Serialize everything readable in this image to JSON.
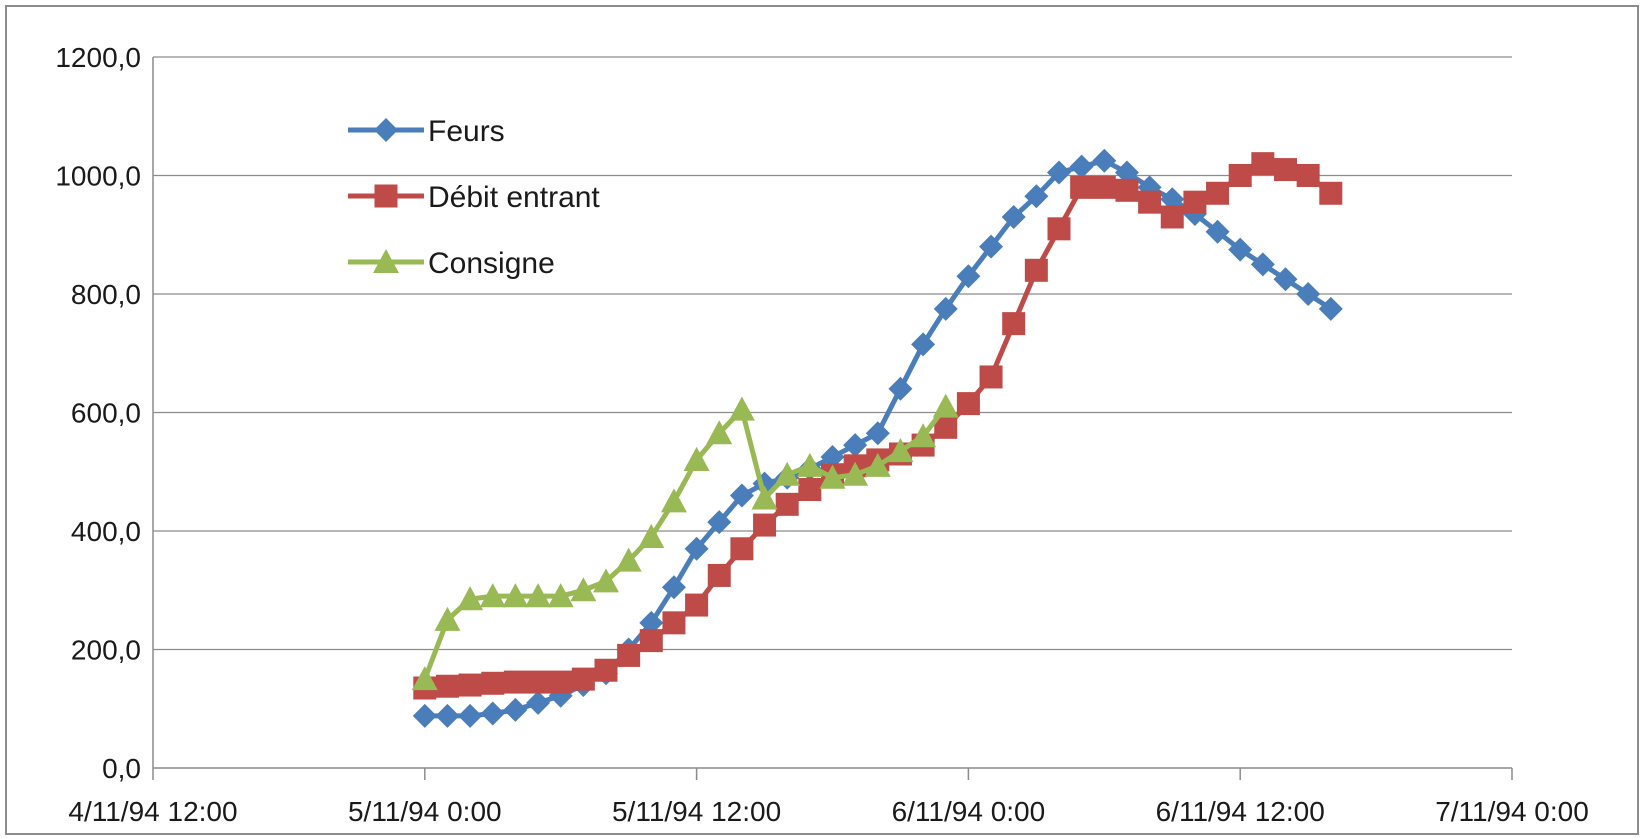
{
  "chart_data": {
    "type": "line",
    "title": "",
    "xlabel": "",
    "ylabel": "",
    "x_axis": {
      "type": "datetime",
      "range": [
        "1994-11-04T12:00",
        "1994-11-07T00:00"
      ],
      "ticks": [
        "1994-11-04T12:00",
        "1994-11-05T00:00",
        "1994-11-05T12:00",
        "1994-11-06T00:00",
        "1994-11-06T12:00",
        "1994-11-07T00:00"
      ],
      "tick_labels": [
        "4/11/94 12:00",
        "5/11/94 0:00",
        "5/11/94 12:00",
        "6/11/94 0:00",
        "6/11/94 12:00",
        "7/11/94 0:00"
      ]
    },
    "y_axis": {
      "range": [
        0,
        1200
      ],
      "ticks": [
        0,
        200,
        400,
        600,
        800,
        1000,
        1200
      ],
      "tick_labels": [
        "0,0",
        "200,0",
        "400,0",
        "600,0",
        "800,0",
        "1000,0",
        "1200,0"
      ]
    },
    "grid": "horizontal",
    "legend_position": "top-left",
    "series": [
      {
        "name": "Feurs",
        "color": "#4a7ebb",
        "marker": "diamond",
        "x": [
          "1994-11-05T00:00",
          "1994-11-05T01:00",
          "1994-11-05T02:00",
          "1994-11-05T03:00",
          "1994-11-05T04:00",
          "1994-11-05T05:00",
          "1994-11-05T06:00",
          "1994-11-05T07:00",
          "1994-11-05T08:00",
          "1994-11-05T09:00",
          "1994-11-05T10:00",
          "1994-11-05T11:00",
          "1994-11-05T12:00",
          "1994-11-05T13:00",
          "1994-11-05T14:00",
          "1994-11-05T15:00",
          "1994-11-05T16:00",
          "1994-11-05T17:00",
          "1994-11-05T18:00",
          "1994-11-05T19:00",
          "1994-11-05T20:00",
          "1994-11-05T21:00",
          "1994-11-05T22:00",
          "1994-11-05T23:00",
          "1994-11-06T00:00",
          "1994-11-06T01:00",
          "1994-11-06T02:00",
          "1994-11-06T03:00",
          "1994-11-06T04:00",
          "1994-11-06T05:00",
          "1994-11-06T06:00",
          "1994-11-06T07:00",
          "1994-11-06T08:00",
          "1994-11-06T09:00",
          "1994-11-06T10:00",
          "1994-11-06T11:00",
          "1994-11-06T12:00",
          "1994-11-06T13:00",
          "1994-11-06T14:00",
          "1994-11-06T15:00",
          "1994-11-06T16:00"
        ],
        "values": [
          88,
          88,
          88,
          92,
          98,
          110,
          122,
          140,
          160,
          200,
          245,
          305,
          370,
          415,
          460,
          480,
          490,
          505,
          525,
          545,
          565,
          640,
          715,
          775,
          830,
          880,
          930,
          965,
          1005,
          1015,
          1025,
          1005,
          980,
          960,
          935,
          905,
          875,
          850,
          825,
          800,
          775
        ]
      },
      {
        "name": "Débit entrant",
        "color": "#be4b48",
        "marker": "square",
        "x": [
          "1994-11-05T00:00",
          "1994-11-05T01:00",
          "1994-11-05T02:00",
          "1994-11-05T03:00",
          "1994-11-05T04:00",
          "1994-11-05T05:00",
          "1994-11-05T06:00",
          "1994-11-05T07:00",
          "1994-11-05T08:00",
          "1994-11-05T09:00",
          "1994-11-05T10:00",
          "1994-11-05T11:00",
          "1994-11-05T12:00",
          "1994-11-05T13:00",
          "1994-11-05T14:00",
          "1994-11-05T15:00",
          "1994-11-05T16:00",
          "1994-11-05T17:00",
          "1994-11-05T18:00",
          "1994-11-05T19:00",
          "1994-11-05T20:00",
          "1994-11-05T21:00",
          "1994-11-05T22:00",
          "1994-11-05T23:00",
          "1994-11-06T00:00",
          "1994-11-06T01:00",
          "1994-11-06T02:00",
          "1994-11-06T03:00",
          "1994-11-06T04:00",
          "1994-11-06T05:00",
          "1994-11-06T06:00",
          "1994-11-06T07:00",
          "1994-11-06T08:00",
          "1994-11-06T09:00",
          "1994-11-06T10:00",
          "1994-11-06T11:00",
          "1994-11-06T12:00",
          "1994-11-06T13:00",
          "1994-11-06T14:00",
          "1994-11-06T15:00",
          "1994-11-06T16:00"
        ],
        "values": [
          135,
          138,
          140,
          143,
          145,
          145,
          145,
          150,
          165,
          190,
          215,
          245,
          275,
          325,
          370,
          410,
          445,
          470,
          495,
          510,
          520,
          530,
          545,
          575,
          615,
          660,
          750,
          840,
          910,
          980,
          980,
          975,
          955,
          930,
          955,
          970,
          1000,
          1020,
          1010,
          1000,
          970
        ]
      },
      {
        "name": "Consigne",
        "color": "#98b954",
        "marker": "triangle",
        "x": [
          "1994-11-05T00:00",
          "1994-11-05T01:00",
          "1994-11-05T02:00",
          "1994-11-05T03:00",
          "1994-11-05T04:00",
          "1994-11-05T05:00",
          "1994-11-05T06:00",
          "1994-11-05T07:00",
          "1994-11-05T08:00",
          "1994-11-05T09:00",
          "1994-11-05T10:00",
          "1994-11-05T11:00",
          "1994-11-05T12:00",
          "1994-11-05T13:00",
          "1994-11-05T14:00",
          "1994-11-05T15:00",
          "1994-11-05T16:00",
          "1994-11-05T17:00",
          "1994-11-05T18:00",
          "1994-11-05T19:00",
          "1994-11-05T20:00",
          "1994-11-05T21:00",
          "1994-11-05T22:00",
          "1994-11-05T23:00"
        ],
        "values": [
          150,
          250,
          285,
          290,
          290,
          290,
          290,
          300,
          315,
          350,
          390,
          450,
          520,
          565,
          605,
          455,
          495,
          510,
          490,
          495,
          510,
          535,
          560,
          610
        ]
      }
    ]
  }
}
